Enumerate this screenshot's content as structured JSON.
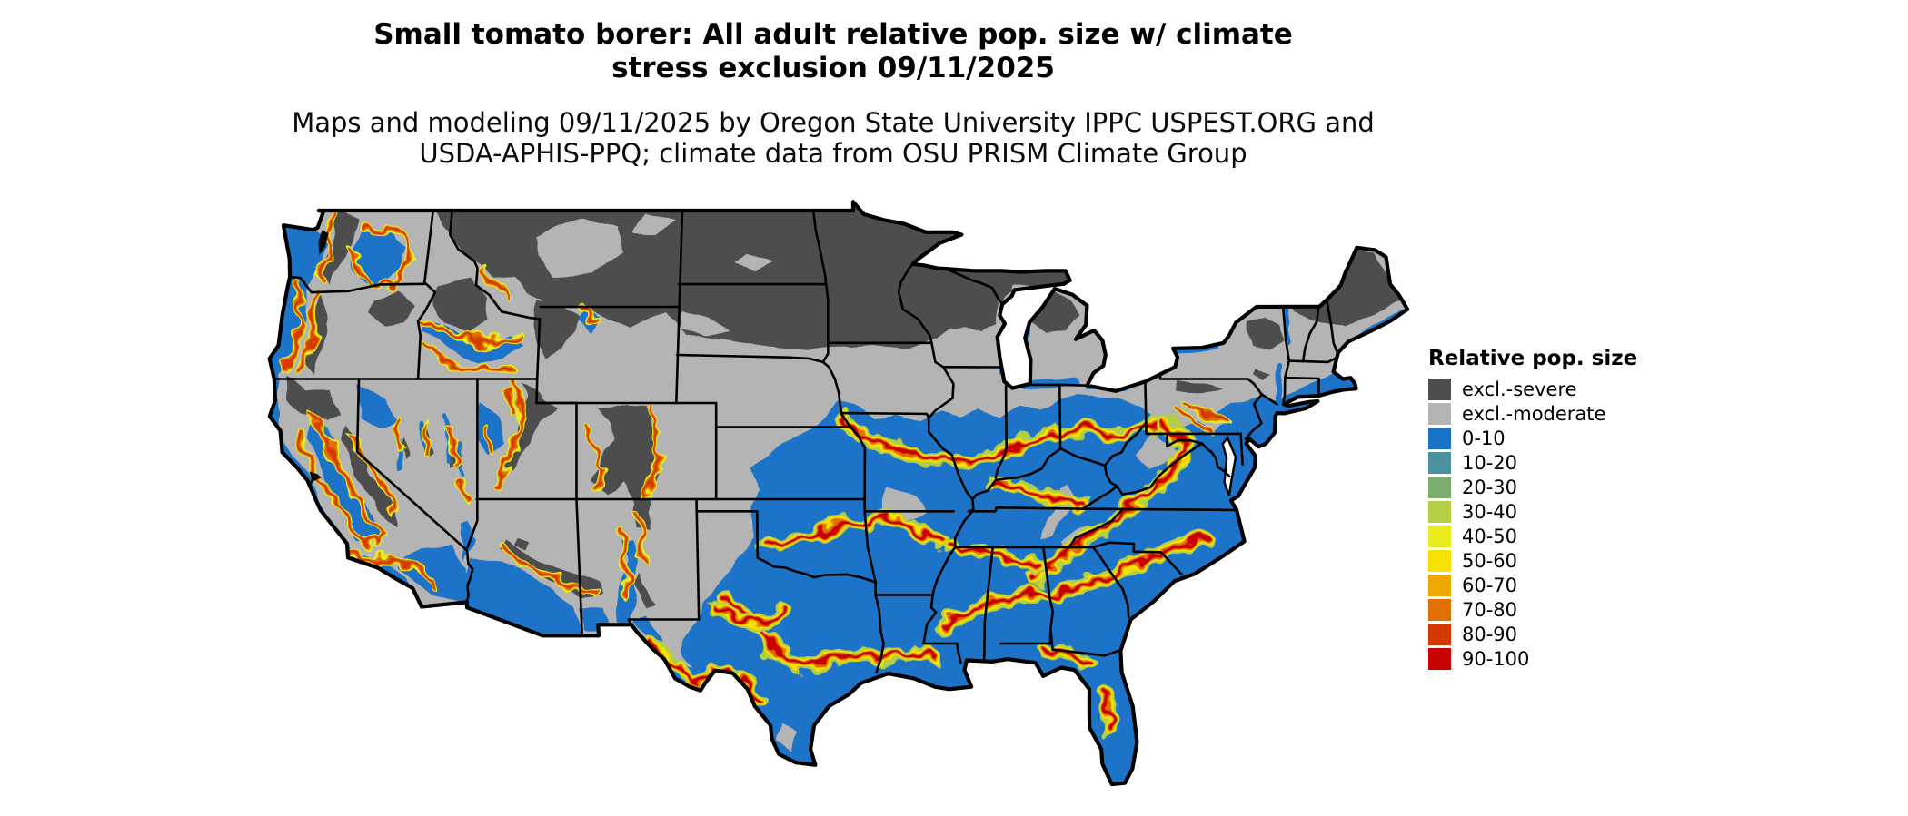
{
  "header": {
    "title_lines": [
      "Small tomato borer: All adult relative pop. size w/ climate",
      "stress exclusion 09/11/2025"
    ],
    "subtitle_lines": [
      "Maps and modeling 09/11/2025 by Oregon State University IPPC USPEST.ORG and",
      "USDA-APHIS-PPQ; climate data from OSU PRISM Climate Group"
    ]
  },
  "legend": {
    "title": "Relative pop. size",
    "items": [
      {
        "label": "excl.-severe",
        "color": "#4d4d4d"
      },
      {
        "label": "excl.-moderate",
        "color": "#b4b4b4"
      },
      {
        "label": "0-10",
        "color": "#1b73c7"
      },
      {
        "label": "10-20",
        "color": "#4b92a0"
      },
      {
        "label": "20-30",
        "color": "#7bae6c"
      },
      {
        "label": "30-40",
        "color": "#b5cf45"
      },
      {
        "label": "40-50",
        "color": "#e9ed1d"
      },
      {
        "label": "50-60",
        "color": "#f8e000"
      },
      {
        "label": "60-70",
        "color": "#eda800"
      },
      {
        "label": "70-80",
        "color": "#e17000"
      },
      {
        "label": "80-90",
        "color": "#d43a00"
      },
      {
        "label": "90-100",
        "color": "#c80000"
      }
    ]
  },
  "map": {
    "outline_color": "#000000",
    "state_border_color": "#000000",
    "water_color": "#ffffff"
  }
}
